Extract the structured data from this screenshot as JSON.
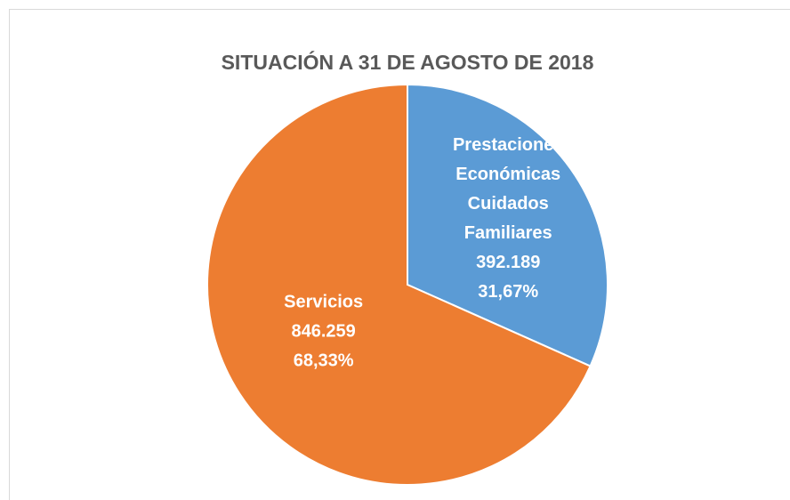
{
  "chart_data": {
    "type": "pie",
    "title": "SITUACIÓN A 31 DE AGOSTO DE 2018",
    "categories": [
      "Prestaciones Económicas Cuidados Familiares",
      "Servicios"
    ],
    "values": [
      392189,
      846259
    ],
    "value_labels": [
      "392.189",
      "846.259"
    ],
    "percents": [
      31.67,
      68.33
    ],
    "percent_labels": [
      "31,67%",
      "68,33%"
    ],
    "colors": [
      "#5b9bd5",
      "#ed7d31"
    ]
  }
}
